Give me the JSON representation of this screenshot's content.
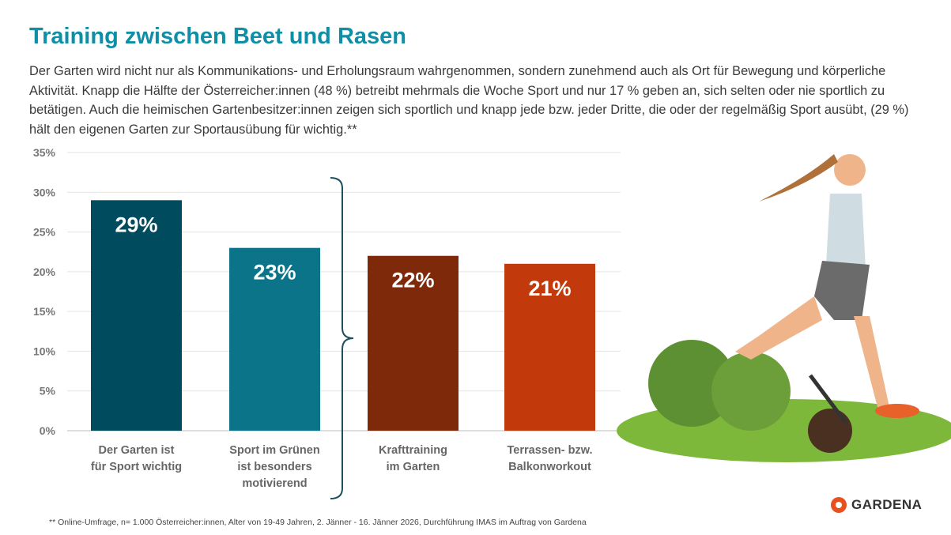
{
  "title": "Training zwischen Beet und Rasen",
  "intro": "Der Garten wird nicht nur als Kommunikations- und Erholungsraum wahrgenommen, sondern zunehmend auch als Ort für Bewegung und körperliche Aktivität. Knapp die Hälfte der Österreicher:innen (48 %) betreibt mehrmals die Woche Sport und nur 17 % geben an, sich selten oder nie sportlich zu betätigen. Auch die heimischen Gartenbesitzer:innen zeigen sich sportlich und knapp jede bzw. jeder Dritte, die oder der regelmäßig Sport ausübt, (29 %) hält den eigenen Garten zur Sportausübung für wichtig.**",
  "footnote": "** Online-Umfrage, n= 1.000 Österreicher:innen, Alter von 19-49 Jahren, 2. Jänner - 16. Jänner 2026, Durchführung IMAS im Auftrag von Gardena",
  "logo": "GARDENA",
  "colors": {
    "accent": "#0e8fa6",
    "logo_orange": "#e8501e"
  },
  "chart_data": {
    "type": "bar",
    "categories": [
      [
        "Der Garten ist",
        "für Sport wichtig"
      ],
      [
        "Sport im Grünen",
        "ist besonders",
        "motivierend"
      ],
      [
        "Krafttraining",
        "im Garten"
      ],
      [
        "Terrassen- bzw.",
        "Balkonworkout"
      ]
    ],
    "values": [
      29,
      23,
      22,
      21
    ],
    "data_labels": [
      "29%",
      "23%",
      "22%",
      "21%"
    ],
    "bar_colors": [
      "#004b5e",
      "#0b7488",
      "#7e2a0a",
      "#c23a0c"
    ],
    "yticks": [
      "0%",
      "5%",
      "10%",
      "15%",
      "20%",
      "25%",
      "30%",
      "35%"
    ],
    "ylim": [
      0,
      35
    ],
    "grid": true,
    "xlabel": "",
    "ylabel": ""
  }
}
